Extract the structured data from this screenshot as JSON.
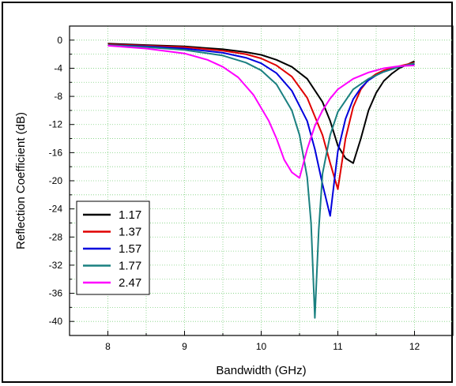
{
  "chart_data": {
    "type": "line",
    "title": "",
    "xlabel": "Bandwidth (GHz)",
    "ylabel": "Reflection Coefficient (dB)",
    "xlim": [
      7.5,
      12.5
    ],
    "ylim": [
      -42,
      2
    ],
    "x_ticks": [
      8,
      9,
      10,
      11,
      12
    ],
    "y_ticks": [
      0,
      -4,
      -8,
      -12,
      -16,
      -20,
      -24,
      -28,
      -32,
      -36,
      -40
    ],
    "grid": "dotted",
    "legend_position": "bottom-left",
    "series": [
      {
        "name": "1.17",
        "color": "#000000",
        "points": [
          [
            8,
            -0.5
          ],
          [
            8.5,
            -0.7
          ],
          [
            9,
            -0.9
          ],
          [
            9.5,
            -1.3
          ],
          [
            9.8,
            -1.7
          ],
          [
            10,
            -2.1
          ],
          [
            10.2,
            -2.8
          ],
          [
            10.4,
            -3.8
          ],
          [
            10.6,
            -5.5
          ],
          [
            10.8,
            -8.8
          ],
          [
            10.9,
            -11.5
          ],
          [
            11.0,
            -15.0
          ],
          [
            11.1,
            -16.8
          ],
          [
            11.2,
            -17.5
          ],
          [
            11.3,
            -14.0
          ],
          [
            11.4,
            -10.0
          ],
          [
            11.5,
            -7.5
          ],
          [
            11.6,
            -5.8
          ],
          [
            11.7,
            -4.8
          ],
          [
            11.8,
            -4.0
          ],
          [
            11.9,
            -3.5
          ],
          [
            12,
            -3.0
          ]
        ]
      },
      {
        "name": "1.37",
        "color": "#e00000",
        "points": [
          [
            8,
            -0.6
          ],
          [
            8.5,
            -0.8
          ],
          [
            9,
            -1.0
          ],
          [
            9.5,
            -1.5
          ],
          [
            9.8,
            -2.0
          ],
          [
            10,
            -2.6
          ],
          [
            10.2,
            -3.6
          ],
          [
            10.4,
            -5.2
          ],
          [
            10.6,
            -8.2
          ],
          [
            10.8,
            -13.5
          ],
          [
            10.9,
            -17.5
          ],
          [
            11.0,
            -21.2
          ],
          [
            11.1,
            -14.0
          ],
          [
            11.2,
            -9.5
          ],
          [
            11.3,
            -7.0
          ],
          [
            11.4,
            -5.6
          ],
          [
            11.5,
            -4.8
          ],
          [
            11.6,
            -4.3
          ],
          [
            11.8,
            -3.7
          ],
          [
            12,
            -3.2
          ]
        ]
      },
      {
        "name": "1.57",
        "color": "#0000dd",
        "points": [
          [
            8,
            -0.7
          ],
          [
            8.5,
            -0.9
          ],
          [
            9,
            -1.2
          ],
          [
            9.5,
            -1.8
          ],
          [
            9.8,
            -2.5
          ],
          [
            10,
            -3.3
          ],
          [
            10.2,
            -4.7
          ],
          [
            10.4,
            -7.2
          ],
          [
            10.6,
            -11.5
          ],
          [
            10.7,
            -15.5
          ],
          [
            10.8,
            -20.5
          ],
          [
            10.9,
            -25.0
          ],
          [
            11.0,
            -15.8
          ],
          [
            11.1,
            -11.2
          ],
          [
            11.2,
            -8.4
          ],
          [
            11.3,
            -6.8
          ],
          [
            11.4,
            -5.7
          ],
          [
            11.5,
            -5.0
          ],
          [
            11.6,
            -4.5
          ],
          [
            11.8,
            -3.8
          ],
          [
            12,
            -3.4
          ]
        ]
      },
      {
        "name": "1.77",
        "color": "#1a8080",
        "points": [
          [
            8,
            -0.7
          ],
          [
            8.5,
            -1.0
          ],
          [
            9,
            -1.4
          ],
          [
            9.5,
            -2.2
          ],
          [
            9.8,
            -3.2
          ],
          [
            10,
            -4.3
          ],
          [
            10.2,
            -6.3
          ],
          [
            10.4,
            -10.0
          ],
          [
            10.5,
            -13.5
          ],
          [
            10.6,
            -19.5
          ],
          [
            10.65,
            -26.0
          ],
          [
            10.7,
            -39.5
          ],
          [
            10.75,
            -27.0
          ],
          [
            10.8,
            -19.0
          ],
          [
            10.9,
            -13.5
          ],
          [
            11.0,
            -10.2
          ],
          [
            11.2,
            -7.0
          ],
          [
            11.4,
            -5.5
          ],
          [
            11.6,
            -4.5
          ],
          [
            11.8,
            -3.8
          ],
          [
            12,
            -3.3
          ]
        ]
      },
      {
        "name": "2.47",
        "color": "#ff00ff",
        "points": [
          [
            8,
            -0.8
          ],
          [
            8.5,
            -1.2
          ],
          [
            9,
            -1.9
          ],
          [
            9.3,
            -2.8
          ],
          [
            9.5,
            -3.8
          ],
          [
            9.7,
            -5.3
          ],
          [
            9.9,
            -7.8
          ],
          [
            10.1,
            -11.5
          ],
          [
            10.2,
            -14.0
          ],
          [
            10.3,
            -17.0
          ],
          [
            10.4,
            -18.8
          ],
          [
            10.5,
            -19.6
          ],
          [
            10.6,
            -15.5
          ],
          [
            10.7,
            -12.2
          ],
          [
            10.8,
            -10.0
          ],
          [
            10.9,
            -8.3
          ],
          [
            11.0,
            -7.0
          ],
          [
            11.2,
            -5.5
          ],
          [
            11.4,
            -4.6
          ],
          [
            11.6,
            -4.0
          ],
          [
            11.8,
            -3.7
          ],
          [
            12,
            -3.6
          ]
        ]
      }
    ]
  }
}
